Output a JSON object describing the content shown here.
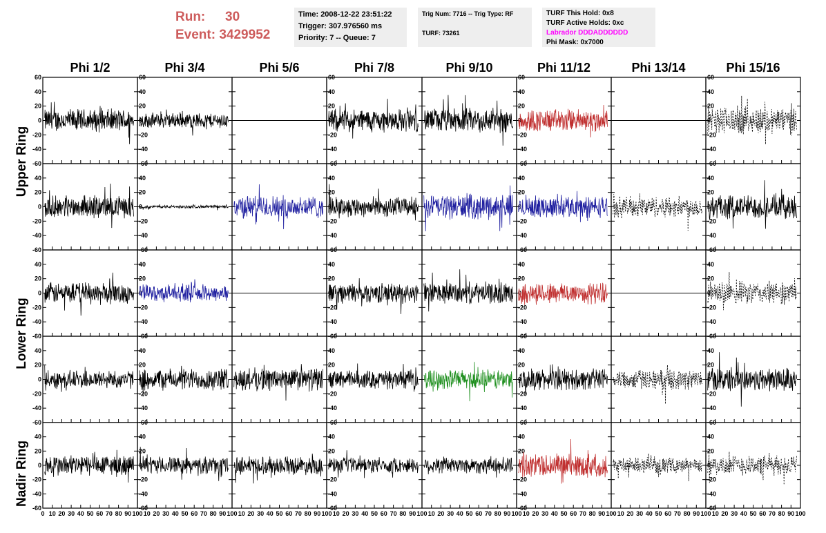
{
  "header": {
    "run_label": "Run:",
    "run_value": "30",
    "event_label": "Event:",
    "event_value": "3429952",
    "time": "Time: 2008-12-22 23:51:22",
    "trigger": "Trigger: 307.976560 ms",
    "priority": "Priority: 7 -- Queue: 7",
    "trig_num": "Trig Num: 7716 -- Trig Type: RF",
    "turf": "TURF: 73261",
    "turf_this_hold": "TURF This Hold: 0x8",
    "turf_active_holds": "TURF Active Holds: 0xc",
    "labrador": "Labrador DDDADDDDDD",
    "phi_mask": "Phi Mask: 0x7000"
  },
  "colors": {
    "title_red": "#cd5c5c",
    "labrador_magenta": "#ff00ff",
    "trace_black": "#000000",
    "trace_red": "#c03030",
    "trace_blue": "#2020a0",
    "trace_green": "#209020",
    "info_bg": "#eeeeee"
  },
  "chart_data": {
    "type": "line",
    "columns": [
      "Phi 1/2",
      "Phi 3/4",
      "Phi 5/6",
      "Phi 7/8",
      "Phi 9/10",
      "Phi 11/12",
      "Phi 13/14",
      "Phi 15/16"
    ],
    "row_groups": [
      "Upper Ring",
      "Lower Ring",
      "Nadir Ring"
    ],
    "rows": 5,
    "xlim": [
      0,
      100
    ],
    "ylim": [
      -60,
      60
    ],
    "x_ticks": [
      0,
      10,
      20,
      30,
      40,
      50,
      60,
      70,
      80,
      90,
      100
    ],
    "x_tick_labels": [
      "0",
      "10",
      "20",
      "30",
      "40",
      "50",
      "60",
      "70",
      "80",
      "90",
      "100"
    ],
    "y_ticks": [
      -60,
      -40,
      -20,
      0,
      20,
      40,
      60
    ],
    "y_tick_labels": [
      "-60",
      "-40",
      "-20",
      "0",
      "20",
      "40",
      "60"
    ],
    "grid": false,
    "panels": [
      [
        {
          "color": "black",
          "amp": 15,
          "style": "solid"
        },
        {
          "color": "black",
          "amp": 10,
          "style": "solid"
        },
        {
          "color": "black",
          "amp": 0,
          "style": "flat"
        },
        {
          "color": "black",
          "amp": 15,
          "style": "solid"
        },
        {
          "color": "black",
          "amp": 16,
          "style": "solid"
        },
        {
          "color": "red",
          "amp": 15,
          "style": "solid"
        },
        {
          "color": "black",
          "amp": 0,
          "style": "flat"
        },
        {
          "color": "black",
          "amp": 18,
          "style": "dashed"
        }
      ],
      [
        {
          "color": "black",
          "amp": 14,
          "style": "solid"
        },
        {
          "color": "black",
          "amp": 2,
          "style": "solid"
        },
        {
          "color": "blue",
          "amp": 15,
          "style": "solid"
        },
        {
          "color": "black",
          "amp": 13,
          "style": "solid"
        },
        {
          "color": "blue",
          "amp": 16,
          "style": "solid"
        },
        {
          "color": "blue",
          "amp": 14,
          "style": "solid"
        },
        {
          "color": "black",
          "amp": 14,
          "style": "dashed"
        },
        {
          "color": "black",
          "amp": 16,
          "style": "solid"
        }
      ],
      [
        {
          "color": "black",
          "amp": 14,
          "style": "solid"
        },
        {
          "color": "blue",
          "amp": 11,
          "style": "solid"
        },
        {
          "color": "black",
          "amp": 0,
          "style": "flat"
        },
        {
          "color": "black",
          "amp": 13,
          "style": "solid"
        },
        {
          "color": "black",
          "amp": 14,
          "style": "solid"
        },
        {
          "color": "red",
          "amp": 14,
          "style": "solid"
        },
        {
          "color": "black",
          "amp": 0,
          "style": "flat"
        },
        {
          "color": "black",
          "amp": 15,
          "style": "dashed"
        }
      ],
      [
        {
          "color": "black",
          "amp": 12,
          "style": "solid"
        },
        {
          "color": "black",
          "amp": 14,
          "style": "solid"
        },
        {
          "color": "black",
          "amp": 15,
          "style": "solid"
        },
        {
          "color": "black",
          "amp": 12,
          "style": "solid"
        },
        {
          "color": "green",
          "amp": 13,
          "style": "solid"
        },
        {
          "color": "black",
          "amp": 14,
          "style": "solid"
        },
        {
          "color": "black",
          "amp": 13,
          "style": "dashed"
        },
        {
          "color": "black",
          "amp": 16,
          "style": "solid"
        }
      ],
      [
        {
          "color": "black",
          "amp": 14,
          "style": "solid"
        },
        {
          "color": "black",
          "amp": 11,
          "style": "solid"
        },
        {
          "color": "black",
          "amp": 12,
          "style": "solid"
        },
        {
          "color": "black",
          "amp": 10,
          "style": "solid"
        },
        {
          "color": "black",
          "amp": 11,
          "style": "solid"
        },
        {
          "color": "red",
          "amp": 16,
          "style": "solid"
        },
        {
          "color": "black",
          "amp": 10,
          "style": "dashed"
        },
        {
          "color": "black",
          "amp": 13,
          "style": "dashed"
        }
      ]
    ]
  }
}
